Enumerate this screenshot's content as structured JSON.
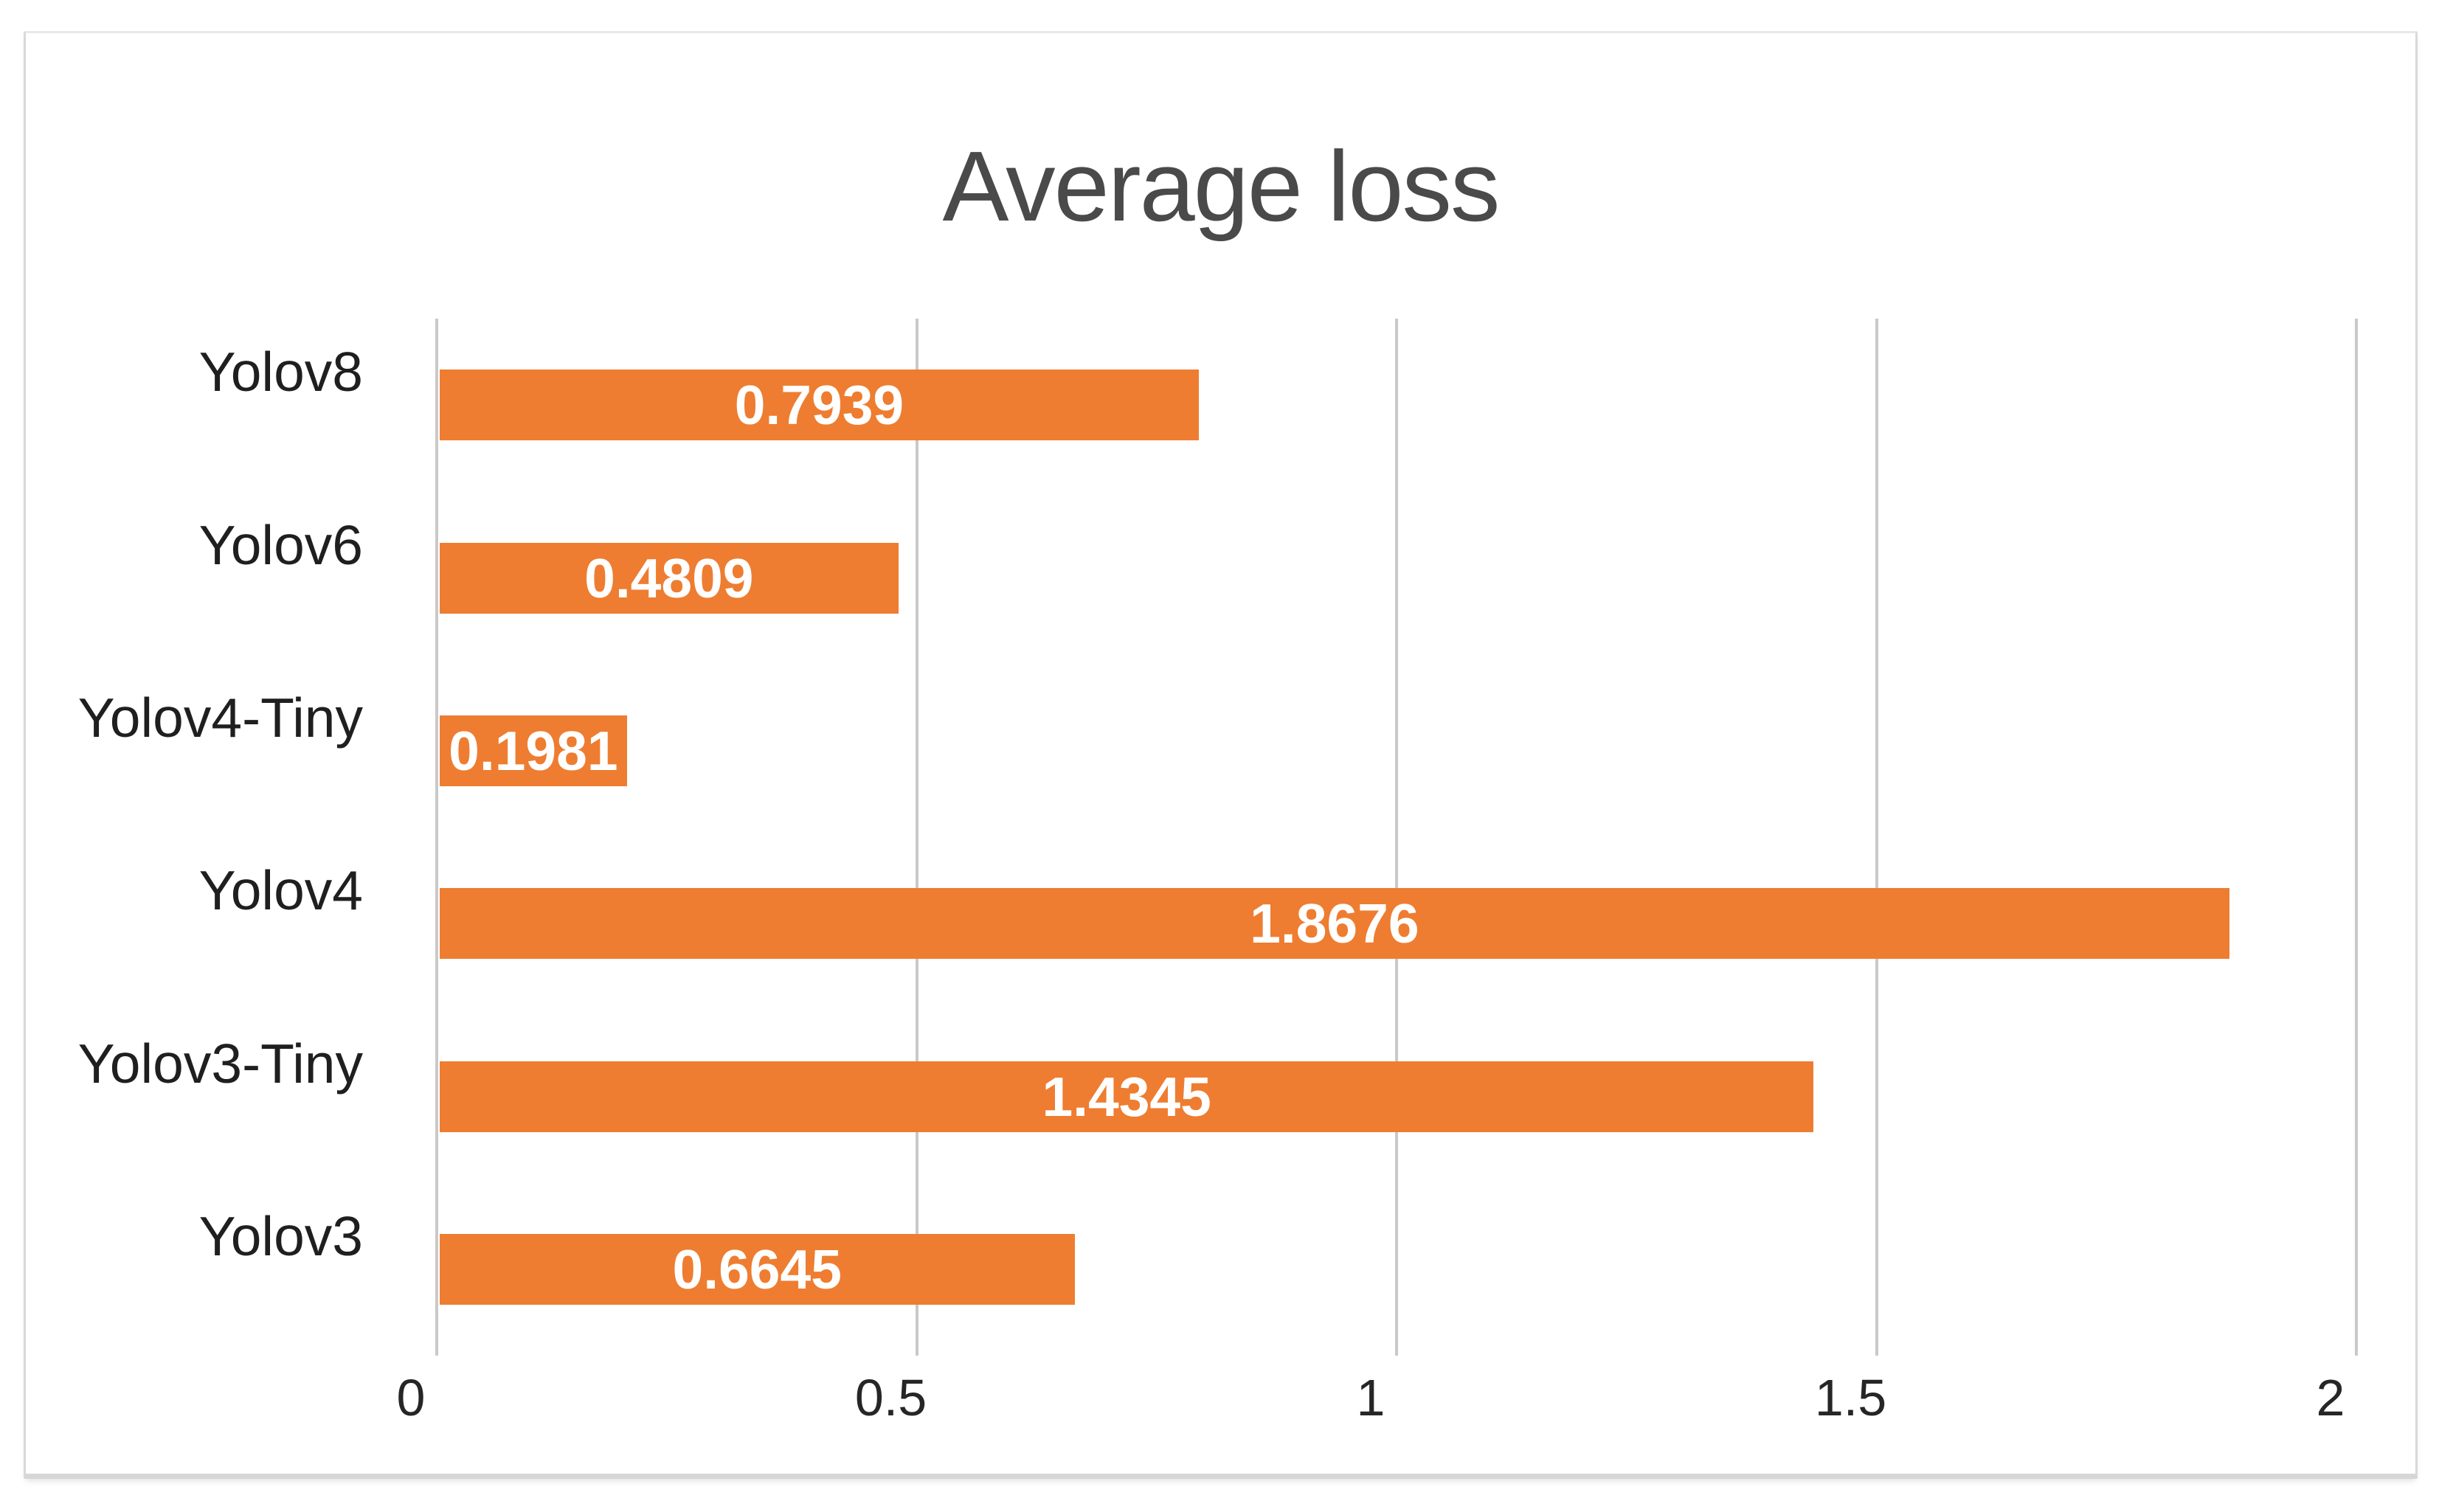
{
  "chart": {
    "title": "Average loss"
  },
  "chart_data": {
    "type": "bar",
    "orientation": "horizontal",
    "title": "Average loss",
    "categories": [
      "Yolov8",
      "Yolov6",
      "Yolov4-Tiny",
      "Yolov4",
      "Yolov3-Tiny",
      "Yolov3"
    ],
    "values": [
      0.7939,
      0.4809,
      0.1981,
      1.8676,
      1.4345,
      0.6645
    ],
    "value_labels": [
      "0.7939",
      "0.4809",
      "0.1981",
      "1.8676",
      "1.4345",
      "0.6645"
    ],
    "xlabel": "",
    "ylabel": "",
    "xlim": [
      0,
      2
    ],
    "xticks": [
      {
        "label": "0",
        "value": 0
      },
      {
        "label": "0.5",
        "value": 0.5
      },
      {
        "label": "1",
        "value": 1
      },
      {
        "label": "1.5",
        "value": 1.5
      },
      {
        "label": "2",
        "value": 2
      }
    ],
    "grid": true,
    "legend": "none",
    "colors": {
      "bar": "#EE7D31",
      "value_label": "#FFFFFF",
      "title": "#4A4A4A",
      "category_label": "#1F1F1F",
      "tick_label": "#262626",
      "gridline": "#C9C9C9",
      "frame_border": "#D9D9D9"
    }
  }
}
